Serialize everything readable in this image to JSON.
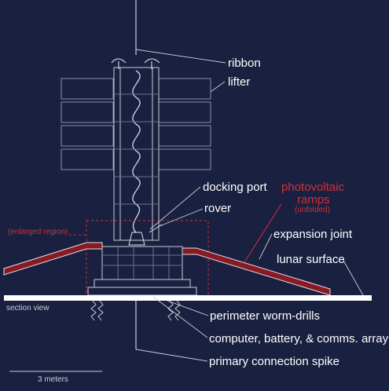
{
  "labels": {
    "ribbon": "ribbon",
    "lifter": "lifter",
    "docking_port": "docking port",
    "rover": "rover",
    "photovoltaic_line1": "photovoltaic",
    "photovoltaic_line2": "ramps",
    "unfolded": "(unfolded)",
    "enlarged_region": "(enlarged region)",
    "expansion_joint": "expansion joint",
    "lunar_surface": "lunar surface",
    "section_view": "section view",
    "perimeter_worm_drills": "perimeter worm-drills",
    "computer_battery": "computer, battery, & comms. array",
    "primary_spike": "primary connection spike",
    "scale_bar": "3 meters"
  },
  "colors": {
    "background": "#1a2040",
    "line": "#c9cdd8",
    "label": "#ffffff",
    "accent_red": "#d0303a",
    "ramp_fill": "#8a1a22",
    "surface": "#ffffff"
  }
}
